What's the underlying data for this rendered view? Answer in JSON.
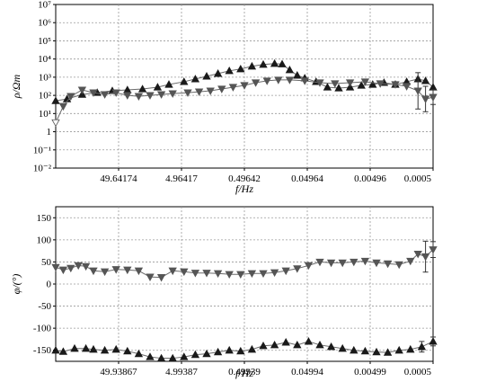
{
  "chart_data": [
    {
      "type": "line",
      "scale": "log",
      "ylabel": "ρ/Ωm",
      "xlabel": "f/Hz",
      "y_ticks": [
        "10⁻²",
        "10⁻¹",
        "1",
        "10¹",
        "10²",
        "10³",
        "10⁴",
        "10⁵",
        "10⁶",
        "10⁷"
      ],
      "ylim_exp": [
        -2,
        7
      ],
      "x_ticks": [
        "49.64174",
        "4.96417",
        "0.49642",
        "0.04964",
        "0.00496",
        "0.0005"
      ],
      "grid": true,
      "series": [
        {
          "marker": "triangle-up",
          "color": "#1a1a1a",
          "points": [
            [
              0,
              1.7
            ],
            [
              0.03,
              1.8
            ],
            [
              0.07,
              2.05
            ],
            [
              0.11,
              2.15
            ],
            [
              0.15,
              2.25
            ],
            [
              0.19,
              2.3
            ],
            [
              0.23,
              2.35
            ],
            [
              0.27,
              2.45
            ],
            [
              0.3,
              2.6
            ],
            [
              0.34,
              2.75
            ],
            [
              0.37,
              2.9
            ],
            [
              0.4,
              3.05
            ],
            [
              0.43,
              3.2
            ],
            [
              0.46,
              3.35
            ],
            [
              0.49,
              3.45
            ],
            [
              0.52,
              3.6
            ],
            [
              0.55,
              3.7
            ],
            [
              0.58,
              3.75
            ],
            [
              0.6,
              3.72
            ],
            [
              0.62,
              3.4
            ],
            [
              0.64,
              3.1
            ],
            [
              0.66,
              2.95
            ],
            [
              0.69,
              2.75
            ],
            [
              0.72,
              2.45
            ],
            [
              0.75,
              2.4
            ],
            [
              0.78,
              2.45
            ],
            [
              0.81,
              2.55
            ],
            [
              0.84,
              2.6
            ],
            [
              0.87,
              2.7
            ],
            [
              0.9,
              2.6
            ],
            [
              0.93,
              2.75
            ],
            [
              0.96,
              2.9
            ],
            [
              0.98,
              2.8
            ],
            [
              1,
              2.45
            ]
          ]
        },
        {
          "marker": "triangle-down",
          "color": "#555555",
          "points": [
            [
              0,
              0.5
            ],
            [
              0.02,
              1.4
            ],
            [
              0.04,
              1.95
            ],
            [
              0.07,
              2.3
            ],
            [
              0.1,
              2.15
            ],
            [
              0.13,
              2.05
            ],
            [
              0.16,
              2.15
            ],
            [
              0.19,
              2.0
            ],
            [
              0.22,
              1.95
            ],
            [
              0.25,
              2.0
            ],
            [
              0.28,
              2.05
            ],
            [
              0.31,
              2.1
            ],
            [
              0.35,
              2.15
            ],
            [
              0.38,
              2.2
            ],
            [
              0.41,
              2.25
            ],
            [
              0.44,
              2.35
            ],
            [
              0.47,
              2.45
            ],
            [
              0.5,
              2.55
            ],
            [
              0.53,
              2.7
            ],
            [
              0.56,
              2.8
            ],
            [
              0.59,
              2.85
            ],
            [
              0.62,
              2.85
            ],
            [
              0.66,
              2.8
            ],
            [
              0.7,
              2.7
            ],
            [
              0.74,
              2.65
            ],
            [
              0.78,
              2.7
            ],
            [
              0.82,
              2.75
            ],
            [
              0.86,
              2.65
            ],
            [
              0.9,
              2.6
            ],
            [
              0.93,
              2.5
            ],
            [
              0.96,
              2.25
            ],
            [
              0.98,
              1.8
            ],
            [
              1,
              1.9
            ]
          ],
          "errorbars": [
            [
              0.96,
              1.0
            ],
            [
              0.98,
              0.7
            ],
            [
              1,
              0.4
            ]
          ]
        }
      ]
    },
    {
      "type": "line",
      "ylabel": "φ/(°)",
      "xlabel": "f/Hz",
      "y_ticks": [
        "150",
        "100",
        "50",
        "0",
        "-50",
        "-100",
        "-150"
      ],
      "ylim": [
        -175,
        175
      ],
      "x_ticks": [
        "49.93867",
        "4.99387",
        "0.49939",
        "0.04994",
        "0.00499",
        "0.0005"
      ],
      "grid": true,
      "series": [
        {
          "marker": "triangle-down",
          "color": "#555555",
          "points": [
            [
              0,
              38
            ],
            [
              0.02,
              32
            ],
            [
              0.04,
              36
            ],
            [
              0.06,
              42
            ],
            [
              0.08,
              40
            ],
            [
              0.1,
              30
            ],
            [
              0.13,
              28
            ],
            [
              0.16,
              33
            ],
            [
              0.19,
              32
            ],
            [
              0.22,
              30
            ],
            [
              0.25,
              16
            ],
            [
              0.28,
              15
            ],
            [
              0.31,
              30
            ],
            [
              0.34,
              28
            ],
            [
              0.37,
              25
            ],
            [
              0.4,
              25
            ],
            [
              0.43,
              24
            ],
            [
              0.46,
              22
            ],
            [
              0.49,
              22
            ],
            [
              0.52,
              24
            ],
            [
              0.55,
              24
            ],
            [
              0.58,
              26
            ],
            [
              0.61,
              30
            ],
            [
              0.64,
              35
            ],
            [
              0.67,
              42
            ],
            [
              0.7,
              50
            ],
            [
              0.73,
              48
            ],
            [
              0.76,
              48
            ],
            [
              0.79,
              50
            ],
            [
              0.82,
              52
            ],
            [
              0.85,
              48
            ],
            [
              0.88,
              46
            ],
            [
              0.91,
              44
            ],
            [
              0.94,
              52
            ],
            [
              0.96,
              68
            ],
            [
              0.98,
              62
            ],
            [
              1,
              78
            ]
          ],
          "errorbars": [
            [
              0.98,
              35
            ],
            [
              1,
              18
            ]
          ]
        },
        {
          "marker": "triangle-up",
          "color": "#1a1a1a",
          "points": [
            [
              0,
              -150
            ],
            [
              0.02,
              -153
            ],
            [
              0.05,
              -146
            ],
            [
              0.08,
              -146
            ],
            [
              0.1,
              -148
            ],
            [
              0.13,
              -150
            ],
            [
              0.16,
              -148
            ],
            [
              0.19,
              -152
            ],
            [
              0.22,
              -158
            ],
            [
              0.25,
              -165
            ],
            [
              0.28,
              -168
            ],
            [
              0.31,
              -168
            ],
            [
              0.34,
              -165
            ],
            [
              0.37,
              -160
            ],
            [
              0.4,
              -158
            ],
            [
              0.43,
              -154
            ],
            [
              0.46,
              -150
            ],
            [
              0.49,
              -152
            ],
            [
              0.52,
              -148
            ],
            [
              0.55,
              -140
            ],
            [
              0.58,
              -138
            ],
            [
              0.61,
              -132
            ],
            [
              0.64,
              -138
            ],
            [
              0.67,
              -130
            ],
            [
              0.7,
              -138
            ],
            [
              0.73,
              -142
            ],
            [
              0.76,
              -146
            ],
            [
              0.79,
              -150
            ],
            [
              0.82,
              -152
            ],
            [
              0.85,
              -154
            ],
            [
              0.88,
              -155
            ],
            [
              0.91,
              -150
            ],
            [
              0.94,
              -148
            ],
            [
              0.97,
              -142
            ],
            [
              1,
              -130
            ]
          ],
          "errorbars": [
            [
              0.97,
              12
            ],
            [
              1,
              10
            ]
          ]
        }
      ]
    }
  ]
}
